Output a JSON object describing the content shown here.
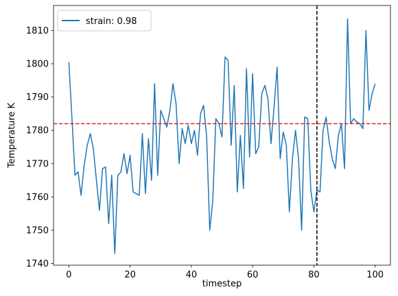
{
  "chart_data": {
    "type": "line",
    "xlabel": "timestep",
    "ylabel": "Temperature K",
    "xlim": [
      -5,
      105
    ],
    "ylim": [
      1739.5,
      1817.5
    ],
    "xticks": [
      0,
      20,
      40,
      60,
      80,
      100
    ],
    "yticks": [
      1740,
      1750,
      1760,
      1770,
      1780,
      1790,
      1800,
      1810
    ],
    "grid": false,
    "legend_position": "top-left",
    "series": [
      {
        "name": "strain: 0.98",
        "color": "#1f77b4",
        "x": [
          0,
          1,
          2,
          3,
          4,
          5,
          6,
          7,
          8,
          9,
          10,
          11,
          12,
          13,
          14,
          15,
          16,
          17,
          18,
          19,
          20,
          21,
          22,
          23,
          24,
          25,
          26,
          27,
          28,
          29,
          30,
          31,
          32,
          33,
          34,
          35,
          36,
          37,
          38,
          39,
          40,
          41,
          42,
          43,
          44,
          45,
          46,
          47,
          48,
          49,
          50,
          51,
          52,
          53,
          54,
          55,
          56,
          57,
          58,
          59,
          60,
          61,
          62,
          63,
          64,
          65,
          66,
          67,
          68,
          69,
          70,
          71,
          72,
          73,
          74,
          75,
          76,
          77,
          78,
          79,
          80,
          81,
          82,
          83,
          84,
          85,
          86,
          87,
          88,
          89,
          90,
          91,
          92,
          93,
          94,
          95,
          96,
          97,
          98,
          99,
          100
        ],
        "y": [
          1800.5,
          1784.0,
          1766.5,
          1767.5,
          1760.5,
          1769.5,
          1775.5,
          1779.0,
          1774.5,
          1765.0,
          1756.0,
          1768.5,
          1769.0,
          1752.0,
          1766.5,
          1743.0,
          1766.5,
          1767.5,
          1773.0,
          1767.0,
          1772.5,
          1761.5,
          1761.0,
          1760.5,
          1779.0,
          1761.0,
          1777.5,
          1765.0,
          1794.0,
          1766.5,
          1786.0,
          1783.5,
          1781.0,
          1786.0,
          1794.0,
          1788.0,
          1770.0,
          1780.5,
          1776.0,
          1781.5,
          1776.0,
          1780.0,
          1772.5,
          1785.0,
          1787.5,
          1778.0,
          1750.0,
          1759.0,
          1783.5,
          1782.0,
          1778.0,
          1802.0,
          1801.0,
          1775.5,
          1793.5,
          1761.5,
          1778.5,
          1762.5,
          1798.5,
          1772.0,
          1797.0,
          1773.0,
          1775.0,
          1791.0,
          1793.5,
          1789.5,
          1776.0,
          1787.0,
          1799.0,
          1771.5,
          1779.5,
          1775.5,
          1755.5,
          1771.5,
          1780.0,
          1771.5,
          1750.0,
          1784.0,
          1783.5,
          1762.0,
          1755.5,
          1762.0,
          1761.5,
          1780.0,
          1784.0,
          1776.5,
          1771.5,
          1768.5,
          1778.5,
          1782.0,
          1768.5,
          1813.5,
          1782.0,
          1783.5,
          1782.5,
          1782.0,
          1780.5,
          1810.0,
          1786.0,
          1791.0,
          1794.0
        ]
      }
    ],
    "reference_lines": [
      {
        "orientation": "horizontal",
        "value": 1782,
        "color": "#d62728",
        "style": "dashed"
      },
      {
        "orientation": "vertical",
        "value": 81,
        "color": "#000000",
        "style": "dashed"
      }
    ],
    "legend": {
      "entries": [
        "strain: 0.98"
      ]
    }
  }
}
